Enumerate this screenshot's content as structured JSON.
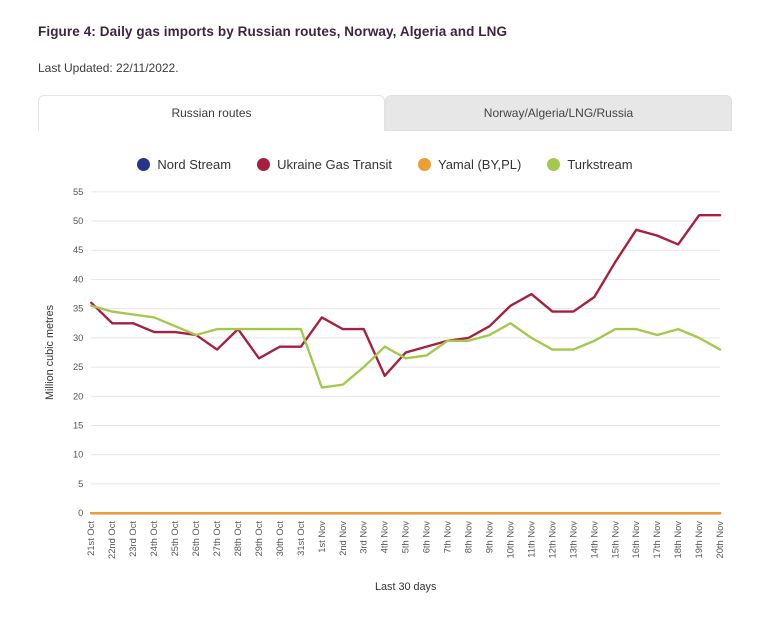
{
  "header": {
    "title": "Figure 4: Daily gas imports by Russian routes, Norway, Algeria and LNG",
    "last_updated": "Last Updated: 22/11/2022."
  },
  "tabs": [
    {
      "label": "Russian routes",
      "active": true
    },
    {
      "label": "Norway/Algeria/LNG/Russia",
      "active": false
    }
  ],
  "colors": {
    "title_color": "#3e2440",
    "grid_color": "#e4e4e4",
    "nord_stream": "#27348b",
    "ukraine_gas_transit": "#a81e3f",
    "yamal": "#eb9e33",
    "turkstream": "#a4c84d"
  },
  "chart_data": {
    "type": "line",
    "title": "",
    "xlabel": "Last 30 days",
    "ylabel": "Million cubic metres",
    "ylim": [
      0,
      55
    ],
    "ytick_step": 5,
    "grid": true,
    "legend_position": "top",
    "categories": [
      "21st Oct",
      "22nd Oct",
      "23rd Oct",
      "24th Oct",
      "25th Oct",
      "26th Oct",
      "27th Oct",
      "28th Oct",
      "29th Oct",
      "30th Oct",
      "31st Oct",
      "1st Nov",
      "2nd Nov",
      "3rd Nov",
      "4th Nov",
      "5th Nov",
      "6th Nov",
      "7th Nov",
      "8th Nov",
      "9th Nov",
      "10th Nov",
      "11th Nov",
      "12th Nov",
      "13th Nov",
      "14th Nov",
      "15th Nov",
      "16th Nov",
      "17th Nov",
      "18th Nov",
      "19th Nov",
      "20th Nov"
    ],
    "series": [
      {
        "name": "Nord Stream",
        "color": "#27348b",
        "values": [
          0,
          0,
          0,
          0,
          0,
          0,
          0,
          0,
          0,
          0,
          0,
          0,
          0,
          0,
          0,
          0,
          0,
          0,
          0,
          0,
          0,
          0,
          0,
          0,
          0,
          0,
          0,
          0,
          0,
          0,
          0
        ]
      },
      {
        "name": "Ukraine Gas Transit",
        "color": "#a81e3f",
        "values": [
          36,
          32.5,
          32.5,
          31,
          31,
          30.5,
          28,
          31.5,
          26.5,
          28.5,
          28.5,
          33.5,
          31.5,
          31.5,
          23.5,
          27.5,
          28.5,
          29.5,
          30,
          32,
          35.5,
          37.5,
          34.5,
          34.5,
          37,
          43,
          48.5,
          47.5,
          46,
          51,
          51
        ]
      },
      {
        "name": "Yamal (BY,PL)",
        "color": "#eb9e33",
        "values": [
          0,
          0,
          0,
          0,
          0,
          0,
          0,
          0,
          0,
          0,
          0,
          0,
          0,
          0,
          0,
          0,
          0,
          0,
          0,
          0,
          0,
          0,
          0,
          0,
          0,
          0,
          0,
          0,
          0,
          0,
          0
        ]
      },
      {
        "name": "Turkstream",
        "color": "#a4c84d",
        "values": [
          35.5,
          34.5,
          34,
          33.5,
          32,
          30.5,
          31.5,
          31.5,
          31.5,
          31.5,
          31.5,
          21.5,
          22,
          25,
          28.5,
          26.5,
          27,
          29.5,
          29.5,
          30.5,
          32.5,
          30,
          28,
          28,
          29.5,
          31.5,
          31.5,
          30.5,
          31.5,
          30,
          28
        ]
      }
    ]
  }
}
